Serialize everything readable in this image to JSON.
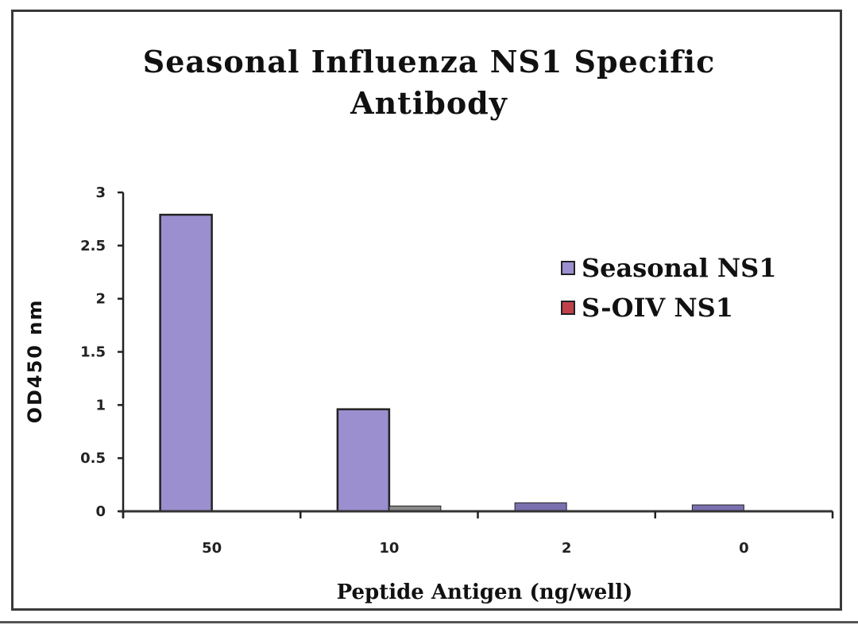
{
  "chart_data": {
    "type": "bar",
    "title": "Seasonal Influenza NS1 Specific Antibody",
    "title_lines": [
      "Seasonal Influenza NS1 Specific",
      "Antibody"
    ],
    "xlabel": "Peptide Antigen (ng/well)",
    "ylabel": "OD450 nm",
    "categories": [
      "50",
      "10",
      "2",
      "0"
    ],
    "series": [
      {
        "name": "Seasonal NS1",
        "color": "#9b8fd0",
        "values": [
          2.79,
          0.96,
          0.08,
          0.06
        ]
      },
      {
        "name": "S-OIV NS1",
        "color": "#c0404a",
        "values": [
          0.0,
          0.05,
          0.0,
          0.0
        ]
      }
    ],
    "ylim": [
      0,
      3
    ],
    "yticks": [
      "0",
      "0.5",
      "1",
      "1.5",
      "2",
      "2.5",
      "3"
    ],
    "ytick_values": [
      0,
      0.5,
      1,
      1.5,
      2,
      2.5,
      3
    ],
    "grid": false,
    "legend_position": "right"
  }
}
